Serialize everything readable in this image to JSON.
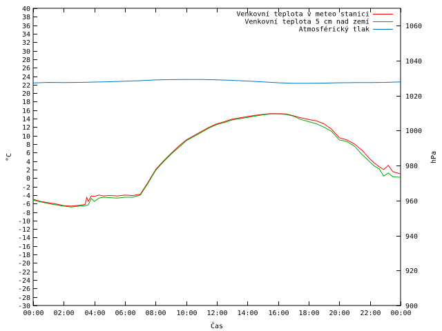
{
  "chart_data": {
    "type": "line",
    "xlabel": "Čas",
    "ylabel": "°C",
    "y2label": "hPa",
    "xlim": [
      0,
      24
    ],
    "ylim": [
      -30,
      40
    ],
    "y2lim": [
      900,
      1070
    ],
    "x_ticks": [
      "00:00",
      "02:00",
      "04:00",
      "06:00",
      "08:00",
      "10:00",
      "12:00",
      "14:00",
      "16:00",
      "18:00",
      "20:00",
      "22:00",
      "00:00"
    ],
    "y_ticks": [
      -30,
      -28,
      -26,
      -24,
      -22,
      -20,
      -18,
      -16,
      -14,
      -12,
      -10,
      -8,
      -6,
      -4,
      -2,
      0,
      2,
      4,
      6,
      8,
      10,
      12,
      14,
      16,
      18,
      20,
      22,
      24,
      26,
      28,
      30,
      32,
      34,
      36,
      38,
      40
    ],
    "y2_ticks": [
      900,
      920,
      940,
      960,
      980,
      1000,
      1020,
      1040,
      1060
    ],
    "legend_position": "top-right",
    "grid": false,
    "series": [
      {
        "name": "Venkovní teplota v meteo stanici",
        "color": "#ff0000",
        "axis": "left",
        "x": [
          0,
          0.5,
          1,
          1.5,
          2,
          2.5,
          3,
          3.4,
          3.5,
          3.6,
          3.8,
          4,
          4.3,
          4.6,
          5,
          5.5,
          6,
          6.5,
          7,
          7.5,
          8,
          8.5,
          9,
          9.5,
          10,
          10.5,
          11,
          11.5,
          12,
          12.5,
          13,
          13.5,
          14,
          14.5,
          15,
          15.5,
          16,
          16.5,
          17,
          17.5,
          18,
          18.5,
          19,
          19.5,
          20,
          20.5,
          21,
          21.5,
          22,
          22.3,
          22.6,
          22.9,
          23.2,
          23.5,
          24
        ],
        "y": [
          -5,
          -5.5,
          -5.8,
          -6.1,
          -6.5,
          -6.6,
          -6.4,
          -6.2,
          -4.5,
          -5.5,
          -4.2,
          -4.3,
          -4,
          -4.2,
          -4.1,
          -4.2,
          -4,
          -4.1,
          -3.8,
          -1,
          2,
          4,
          5.8,
          7.5,
          9,
          10,
          11,
          12,
          12.8,
          13.3,
          13.9,
          14.2,
          14.5,
          14.8,
          15,
          15.2,
          15.2,
          15.1,
          14.7,
          14.2,
          13.8,
          13.5,
          12.8,
          11.5,
          9.5,
          9,
          8,
          6.5,
          4.5,
          3.5,
          2.7,
          2,
          3,
          1.5,
          1
        ]
      },
      {
        "name": "Venkovní teplota 5 cm nad zemí",
        "color": "#00aa00",
        "axis": "left",
        "x": [
          0,
          0.5,
          1,
          1.5,
          2,
          2.5,
          3,
          3.4,
          3.6,
          3.8,
          4,
          4.3,
          4.6,
          5,
          5.5,
          6,
          6.5,
          7,
          7.5,
          8,
          8.5,
          9,
          9.5,
          10,
          10.5,
          11,
          11.5,
          12,
          12.5,
          13,
          13.5,
          14,
          14.5,
          15,
          15.5,
          16,
          16.5,
          17,
          17.5,
          18,
          18.5,
          19,
          19.5,
          20,
          20.5,
          21,
          21.5,
          22,
          22.3,
          22.6,
          22.9,
          23.2,
          23.5,
          24
        ],
        "y": [
          -5.2,
          -5.6,
          -6,
          -6.3,
          -6.6,
          -6.8,
          -6.6,
          -6.5,
          -6.3,
          -4.8,
          -5.5,
          -4.7,
          -4.5,
          -4.6,
          -4.7,
          -4.5,
          -4.5,
          -4,
          -1.2,
          1.8,
          3.8,
          5.6,
          7.2,
          8.8,
          9.8,
          10.8,
          11.8,
          12.6,
          13.1,
          13.7,
          14,
          14.3,
          14.6,
          14.9,
          15.1,
          15.1,
          15,
          14.6,
          13.8,
          13.3,
          12.8,
          12,
          11,
          9,
          8.6,
          7.5,
          5.5,
          3.8,
          2.8,
          2.2,
          0.5,
          1.2,
          0.3,
          0.2
        ]
      },
      {
        "name": "Atmosférický tlak",
        "color": "#0070c0",
        "axis": "right",
        "x": [
          0,
          1,
          2,
          3,
          4,
          5,
          6,
          7,
          8,
          9,
          10,
          11,
          12,
          13,
          14,
          15,
          16,
          17,
          18,
          19,
          20,
          21,
          22,
          23,
          24
        ],
        "y": [
          1027.3,
          1027.6,
          1027.5,
          1027.6,
          1027.8,
          1028.0,
          1028.3,
          1028.6,
          1029.0,
          1029.2,
          1029.3,
          1029.3,
          1029.1,
          1028.8,
          1028.4,
          1027.9,
          1027.4,
          1027.1,
          1027.1,
          1027.2,
          1027.4,
          1027.5,
          1027.5,
          1027.6,
          1027.9
        ]
      }
    ]
  }
}
